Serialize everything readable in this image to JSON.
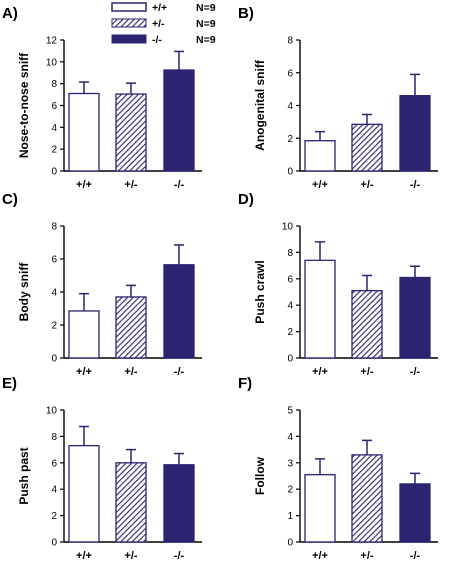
{
  "colors": {
    "wildtype_fill": "#ffffff",
    "het_stripe": "#2b2470",
    "knockout_fill": "#2b2470",
    "axis": "#000000"
  },
  "legend": {
    "entries": [
      {
        "label": "+/+",
        "n": "N=9",
        "pattern": "open"
      },
      {
        "label": "+/-",
        "n": "N=9",
        "pattern": "hatched"
      },
      {
        "label": "-/-",
        "n": "N=9",
        "pattern": "solid"
      }
    ]
  },
  "chart_data": [
    {
      "type": "bar",
      "panel": "A)",
      "ylabel": "Nose-to-nose sniff",
      "categories": [
        "+/+",
        "+/-",
        "-/-"
      ],
      "values": [
        7.1,
        7.05,
        9.25
      ],
      "errors": [
        1.05,
        1.0,
        1.7
      ],
      "ylim": [
        0,
        12
      ],
      "yticks": [
        0,
        2,
        4,
        6,
        8,
        10,
        12
      ],
      "ytick_labels": [
        "0",
        "2",
        "4",
        "6",
        "8",
        "10",
        "12"
      ]
    },
    {
      "type": "bar",
      "panel": "B)",
      "ylabel": "Anogenital sniff",
      "categories": [
        "+/+",
        "+/-",
        "-/-"
      ],
      "values": [
        1.85,
        2.85,
        4.6
      ],
      "errors": [
        0.55,
        0.6,
        1.3
      ],
      "ylim": [
        0,
        8
      ],
      "yticks": [
        0,
        2,
        4,
        6,
        8
      ],
      "ytick_labels": [
        "0",
        "2",
        "4",
        "6",
        "8"
      ]
    },
    {
      "type": "bar",
      "panel": "C)",
      "ylabel": "Body sniff",
      "categories": [
        "+/+",
        "+/-",
        "-/-"
      ],
      "values": [
        2.85,
        3.7,
        5.65
      ],
      "errors": [
        1.05,
        0.7,
        1.2
      ],
      "ylim": [
        0,
        8
      ],
      "yticks": [
        0,
        2,
        4,
        6,
        8
      ],
      "ytick_labels": [
        "0",
        "2",
        "4",
        "6",
        "8"
      ]
    },
    {
      "type": "bar",
      "panel": "D)",
      "ylabel": "Push crawl",
      "categories": [
        "+/+",
        "+/-",
        "-/-"
      ],
      "values": [
        7.4,
        5.1,
        6.1
      ],
      "errors": [
        1.4,
        1.15,
        0.85
      ],
      "ylim": [
        0,
        10
      ],
      "yticks": [
        0,
        2,
        4,
        6,
        8,
        10
      ],
      "ytick_labels": [
        "0",
        "2",
        "4",
        "6",
        "8",
        "10"
      ]
    },
    {
      "type": "bar",
      "panel": "E)",
      "ylabel": "Push past",
      "categories": [
        "+/+",
        "+/-",
        "-/-"
      ],
      "values": [
        7.3,
        6.0,
        5.85
      ],
      "errors": [
        1.45,
        1.0,
        0.85
      ],
      "ylim": [
        0,
        10
      ],
      "yticks": [
        0,
        2,
        4,
        6,
        8,
        10
      ],
      "ytick_labels": [
        "0",
        "2",
        "4",
        "6",
        "8",
        "10"
      ]
    },
    {
      "type": "bar",
      "panel": "F)",
      "ylabel": "Follow",
      "categories": [
        "+/+",
        "+/-",
        "-/-"
      ],
      "values": [
        2.55,
        3.3,
        2.2
      ],
      "errors": [
        0.6,
        0.55,
        0.4
      ],
      "ylim": [
        0,
        5
      ],
      "yticks": [
        0,
        1,
        2,
        3,
        4,
        5
      ],
      "ytick_labels": [
        "0",
        "1",
        "2",
        "3",
        "4",
        "5"
      ]
    }
  ]
}
